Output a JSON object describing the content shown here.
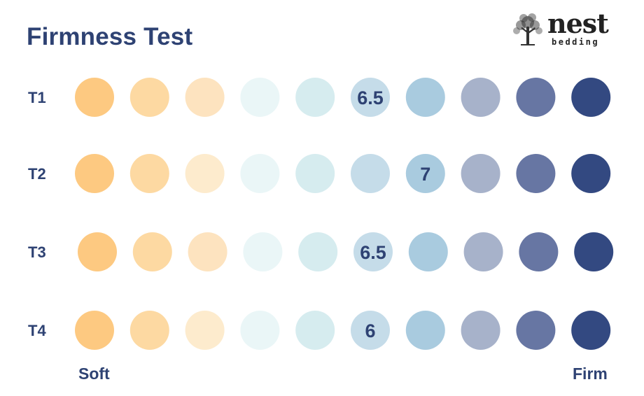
{
  "title": "Firmness Test",
  "logo": {
    "word": "nest",
    "sub": "bedding"
  },
  "chart_data": {
    "type": "scatter",
    "title": "Firmness Test",
    "scale_points": 10,
    "scale_colors": [
      "#fdc981",
      "#fdd9a2",
      "#fde3bf",
      "#eaf6f7",
      "#d6ecef",
      "#c5dce9",
      "#a9cbdf",
      "#a7b2ca",
      "#6776a3",
      "#334981"
    ],
    "rows": [
      {
        "label": "T1",
        "value": 6.5,
        "value_label": "6.5",
        "dot_index": 5,
        "dot_color_overrides": {}
      },
      {
        "label": "T2",
        "value": 7,
        "value_label": "7",
        "dot_index": 6,
        "dot_color_overrides": {
          "2": "#fdebcd"
        }
      },
      {
        "label": "T3",
        "value": 6.5,
        "value_label": "6.5",
        "dot_index": 5,
        "dot_color_overrides": {}
      },
      {
        "label": "T4",
        "value": 6,
        "value_label": "6",
        "dot_index": 5,
        "dot_color_overrides": {
          "2": "#fdebcd"
        }
      }
    ],
    "axis": {
      "left_label": "Soft",
      "right_label": "Firm"
    }
  }
}
